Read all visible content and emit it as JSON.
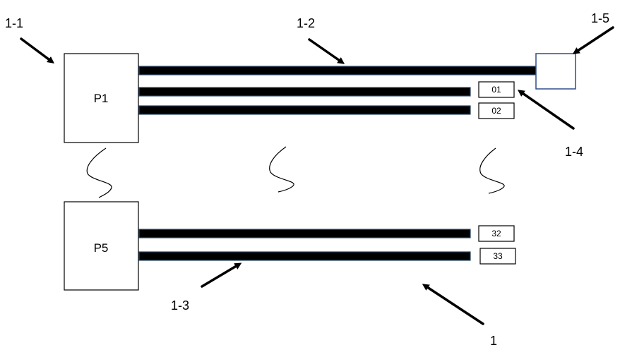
{
  "boxes": {
    "top": "P1",
    "bottom": "P5"
  },
  "tags": [
    "01",
    "02",
    "32",
    "33"
  ],
  "callouts": {
    "c1_1": "1-1",
    "c1_2": "1-2",
    "c1_3": "1-3",
    "c1_4": "1-4",
    "c1_5": "1-5",
    "c1": "1"
  }
}
